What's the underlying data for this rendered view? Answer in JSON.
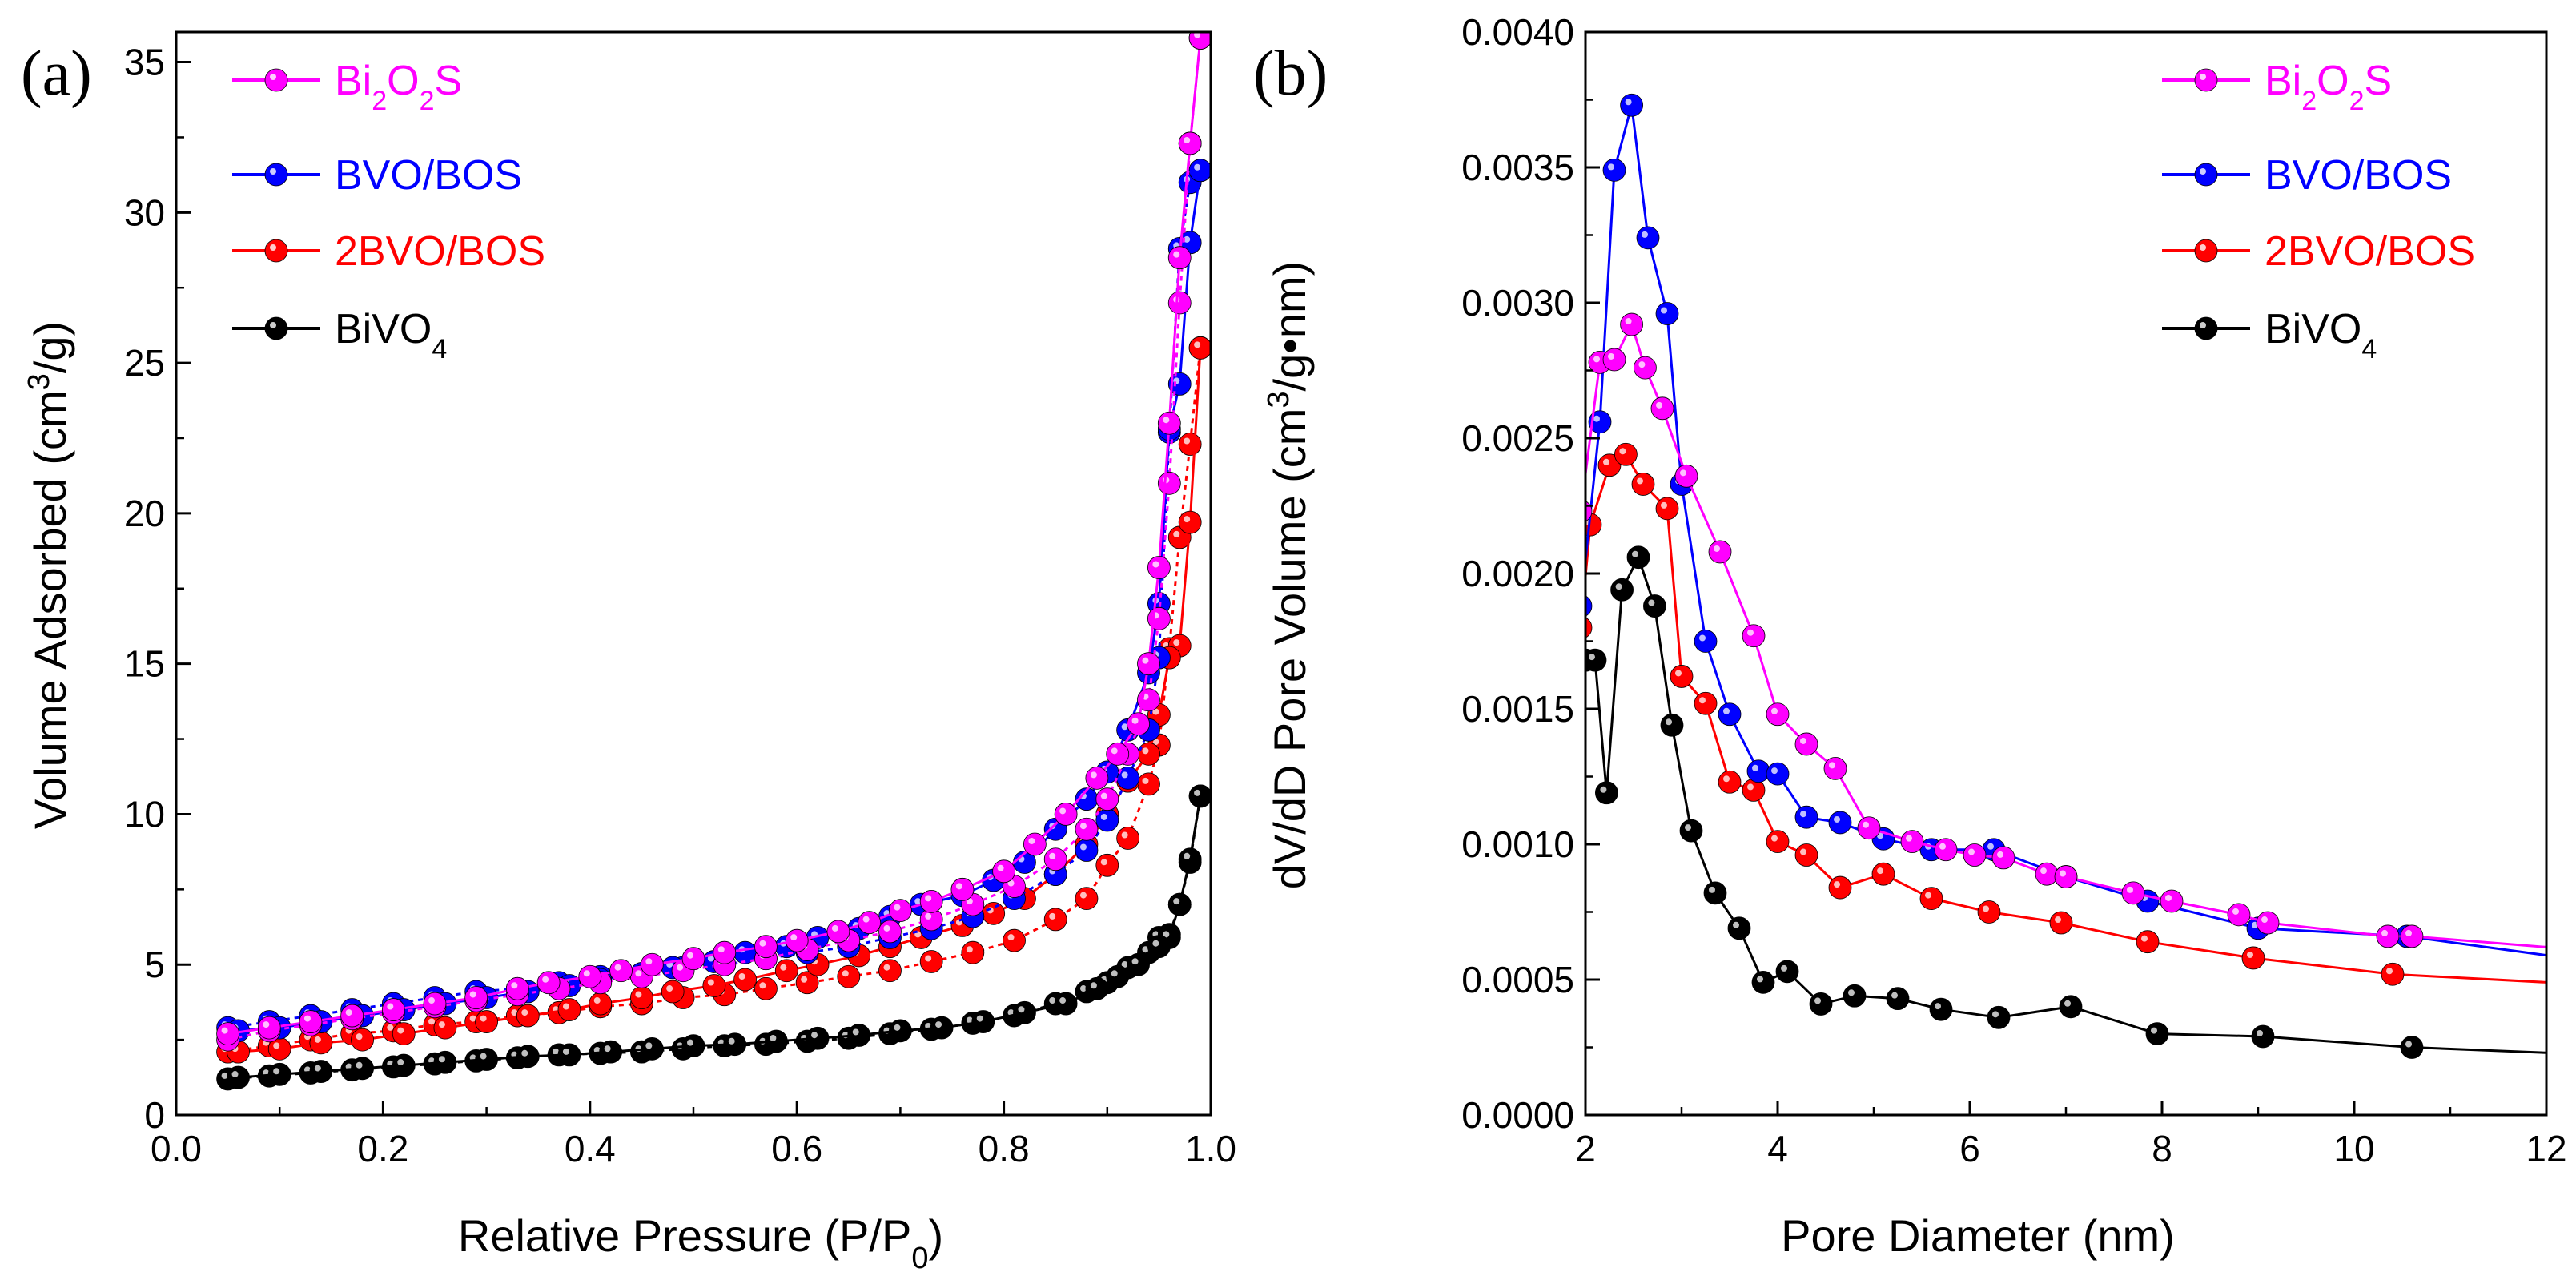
{
  "chart_data": [
    {
      "type": "scatter",
      "panel_label": "(a)",
      "title": "",
      "xlabel": "Relative Pressure (P/P",
      "xlabel_sub": "0",
      "xlabel_end": ")",
      "ylabel": "Volume Adsorbed (cm",
      "ylabel_sup": "3",
      "ylabel_end": "/g)",
      "xlim": [
        0.0,
        1.0
      ],
      "ylim": [
        0,
        36
      ],
      "xticks": [
        0.0,
        0.2,
        0.4,
        0.6,
        0.8,
        1.0
      ],
      "xtick_labels": [
        "0.0",
        "0.2",
        "0.4",
        "0.6",
        "0.8",
        "1.0"
      ],
      "yticks": [
        0,
        5,
        10,
        15,
        20,
        25,
        30,
        35
      ],
      "ytick_labels": [
        "0",
        "5",
        "10",
        "15",
        "20",
        "25",
        "30",
        "35"
      ],
      "grid": false,
      "legend_position": "top-left",
      "series": [
        {
          "name": "Bi2O2S",
          "color": "#ff00ff",
          "adsorption": {
            "x": [
              0.05,
              0.09,
              0.13,
              0.17,
              0.21,
              0.25,
              0.29,
              0.33,
              0.37,
              0.41,
              0.45,
              0.49,
              0.53,
              0.57,
              0.61,
              0.65,
              0.69,
              0.73,
              0.77,
              0.81,
              0.85,
              0.88,
              0.9,
              0.92,
              0.94,
              0.95,
              0.96,
              0.97,
              0.98,
              0.99
            ],
            "y": [
              2.5,
              2.8,
              3.0,
              3.2,
              3.4,
              3.6,
              3.8,
              4.0,
              4.2,
              4.4,
              4.6,
              4.8,
              5.0,
              5.2,
              5.5,
              5.8,
              6.1,
              6.5,
              7.0,
              7.6,
              8.5,
              9.5,
              10.5,
              12.0,
              13.8,
              16.5,
              21.0,
              27.0,
              32.3,
              35.8
            ]
          },
          "desorption": {
            "x": [
              0.99,
              0.98,
              0.97,
              0.96,
              0.95,
              0.94,
              0.93,
              0.91,
              0.89,
              0.86,
              0.83,
              0.8,
              0.76,
              0.73,
              0.7,
              0.67,
              0.64,
              0.6,
              0.57,
              0.53,
              0.5,
              0.46,
              0.43,
              0.4,
              0.36,
              0.33,
              0.29,
              0.25,
              0.21,
              0.17,
              0.13,
              0.09,
              0.05
            ],
            "y": [
              35.8,
              32.3,
              28.5,
              23.0,
              18.2,
              15.0,
              13.0,
              12.0,
              11.2,
              10.0,
              9.0,
              8.1,
              7.5,
              7.1,
              6.8,
              6.4,
              6.1,
              5.8,
              5.6,
              5.4,
              5.2,
              5.0,
              4.8,
              4.6,
              4.4,
              4.2,
              3.9,
              3.7,
              3.5,
              3.3,
              3.1,
              2.9,
              2.7
            ]
          }
        },
        {
          "name": "BVO/BOS",
          "color": "#0000ff",
          "adsorption": {
            "x": [
              0.05,
              0.09,
              0.13,
              0.17,
              0.21,
              0.25,
              0.29,
              0.33,
              0.37,
              0.41,
              0.45,
              0.49,
              0.53,
              0.57,
              0.61,
              0.65,
              0.69,
              0.73,
              0.77,
              0.81,
              0.85,
              0.88,
              0.9,
              0.92,
              0.94,
              0.95,
              0.96,
              0.97,
              0.98,
              0.99
            ],
            "y": [
              2.9,
              3.1,
              3.3,
              3.5,
              3.7,
              3.9,
              4.1,
              4.2,
              4.4,
              4.6,
              4.7,
              4.9,
              5.0,
              5.2,
              5.4,
              5.6,
              5.9,
              6.2,
              6.6,
              7.2,
              8.0,
              8.8,
              9.8,
              11.2,
              12.8,
              15.2,
              22.7,
              28.8,
              31.0,
              31.4
            ]
          },
          "desorption": {
            "x": [
              0.99,
              0.98,
              0.97,
              0.96,
              0.95,
              0.94,
              0.92,
              0.9,
              0.88,
              0.85,
              0.82,
              0.79,
              0.76,
              0.72,
              0.69,
              0.66,
              0.62,
              0.59,
              0.55,
              0.52,
              0.48,
              0.45,
              0.41,
              0.38,
              0.34,
              0.3,
              0.26,
              0.22,
              0.18,
              0.14,
              0.1,
              0.06
            ],
            "y": [
              31.4,
              29.0,
              24.3,
              22.8,
              17.0,
              14.7,
              12.8,
              11.4,
              10.5,
              9.5,
              8.4,
              7.8,
              7.3,
              7.0,
              6.6,
              6.2,
              5.9,
              5.6,
              5.4,
              5.1,
              4.9,
              4.7,
              4.5,
              4.3,
              4.1,
              3.9,
              3.7,
              3.5,
              3.3,
              3.1,
              2.9,
              2.8
            ]
          }
        },
        {
          "name": "2BVO/BOS",
          "color": "#ff0000",
          "adsorption": {
            "x": [
              0.05,
              0.09,
              0.13,
              0.17,
              0.21,
              0.25,
              0.29,
              0.33,
              0.37,
              0.41,
              0.45,
              0.49,
              0.53,
              0.57,
              0.61,
              0.65,
              0.69,
              0.73,
              0.77,
              0.81,
              0.85,
              0.88,
              0.9,
              0.92,
              0.94,
              0.95,
              0.96,
              0.97,
              0.98,
              0.99
            ],
            "y": [
              2.1,
              2.3,
              2.5,
              2.7,
              2.8,
              3.0,
              3.1,
              3.3,
              3.4,
              3.6,
              3.7,
              3.9,
              4.0,
              4.2,
              4.4,
              4.6,
              4.8,
              5.1,
              5.4,
              5.8,
              6.5,
              7.2,
              8.3,
              9.2,
              11.0,
              12.3,
              15.5,
              19.2,
              22.3,
              25.5
            ]
          },
          "desorption": {
            "x": [
              0.99,
              0.98,
              0.97,
              0.96,
              0.95,
              0.94,
              0.92,
              0.9,
              0.88,
              0.85,
              0.82,
              0.79,
              0.76,
              0.72,
              0.69,
              0.66,
              0.62,
              0.59,
              0.55,
              0.52,
              0.48,
              0.45,
              0.41,
              0.38,
              0.34,
              0.3,
              0.26,
              0.22,
              0.18,
              0.14,
              0.1,
              0.06
            ],
            "y": [
              25.5,
              19.7,
              15.6,
              15.2,
              13.3,
              12.0,
              11.1,
              10.0,
              9.0,
              8.0,
              7.2,
              6.7,
              6.3,
              5.9,
              5.6,
              5.3,
              5.0,
              4.8,
              4.5,
              4.3,
              4.1,
              3.9,
              3.7,
              3.5,
              3.3,
              3.1,
              2.9,
              2.7,
              2.5,
              2.4,
              2.2,
              2.1
            ]
          }
        },
        {
          "name": "BiVO4",
          "color": "#000000",
          "adsorption": {
            "x": [
              0.05,
              0.09,
              0.13,
              0.17,
              0.21,
              0.25,
              0.29,
              0.33,
              0.37,
              0.41,
              0.45,
              0.49,
              0.53,
              0.57,
              0.61,
              0.65,
              0.69,
              0.73,
              0.77,
              0.81,
              0.85,
              0.88,
              0.9,
              0.92,
              0.94,
              0.95,
              0.96,
              0.97,
              0.98,
              0.99
            ],
            "y": [
              1.2,
              1.3,
              1.4,
              1.5,
              1.6,
              1.7,
              1.8,
              1.9,
              2.0,
              2.05,
              2.1,
              2.2,
              2.3,
              2.35,
              2.45,
              2.55,
              2.7,
              2.85,
              3.05,
              3.3,
              3.7,
              4.1,
              4.4,
              4.9,
              5.4,
              5.9,
              6.0,
              7.0,
              8.4,
              10.6
            ]
          },
          "desorption": {
            "x": [
              0.99,
              0.98,
              0.97,
              0.96,
              0.95,
              0.93,
              0.91,
              0.89,
              0.86,
              0.82,
              0.78,
              0.74,
              0.7,
              0.66,
              0.62,
              0.58,
              0.54,
              0.5,
              0.46,
              0.42,
              0.38,
              0.34,
              0.3,
              0.26,
              0.22,
              0.18,
              0.14,
              0.1,
              0.06
            ],
            "y": [
              10.6,
              8.5,
              7.0,
              5.9,
              5.6,
              5.0,
              4.6,
              4.2,
              3.7,
              3.4,
              3.1,
              2.9,
              2.8,
              2.65,
              2.55,
              2.45,
              2.35,
              2.3,
              2.2,
              2.1,
              2.0,
              1.95,
              1.85,
              1.75,
              1.65,
              1.55,
              1.45,
              1.35,
              1.25
            ]
          }
        }
      ]
    },
    {
      "type": "line",
      "panel_label": "(b)",
      "title": "",
      "xlabel": "Pore Diameter (nm)",
      "ylabel": "dV/dD Pore Volume (cm",
      "ylabel_sup": "3",
      "ylabel_end": "/g•nm)",
      "xlim": [
        2,
        12
      ],
      "ylim": [
        0,
        0.004
      ],
      "xticks": [
        2,
        4,
        6,
        8,
        10,
        12
      ],
      "xtick_labels": [
        "2",
        "4",
        "6",
        "8",
        "10",
        "12"
      ],
      "yticks": [
        0,
        0.0005,
        0.001,
        0.0015,
        0.002,
        0.0025,
        0.003,
        0.0035,
        0.004
      ],
      "ytick_labels": [
        "0.0000",
        "0.0005",
        "0.0010",
        "0.0015",
        "0.0020",
        "0.0025",
        "0.0030",
        "0.0035",
        "0.0040"
      ],
      "grid": false,
      "legend_position": "top-right",
      "series": [
        {
          "name": "Bi2O2S",
          "color": "#ff00ff",
          "x": [
            1.95,
            2.15,
            2.3,
            2.48,
            2.62,
            2.8,
            3.05,
            3.4,
            3.75,
            4.0,
            4.3,
            4.6,
            4.95,
            5.4,
            5.75,
            6.05,
            6.35,
            6.8,
            7.0,
            7.7,
            8.1,
            8.8,
            9.1,
            10.35,
            10.6,
            12.0
          ],
          "y": [
            0.00223,
            0.00278,
            0.00279,
            0.00292,
            0.00276,
            0.00261,
            0.00236,
            0.00208,
            0.00177,
            0.00148,
            0.00137,
            0.00128,
            0.00106,
            0.00101,
            0.00098,
            0.00096,
            0.00095,
            0.00089,
            0.00088,
            0.00082,
            0.00079,
            0.00074,
            0.00071,
            0.00066,
            0.00066,
            0.00062
          ]
        },
        {
          "name": "BVO/BOS",
          "color": "#0000ff",
          "x": [
            1.95,
            2.15,
            2.3,
            2.48,
            2.65,
            2.85,
            3.0,
            3.25,
            3.5,
            3.8,
            4.0,
            4.3,
            4.65,
            5.1,
            5.6,
            6.25,
            7.0,
            7.85,
            9.0,
            10.55,
            12.0
          ],
          "y": [
            0.00188,
            0.00256,
            0.00349,
            0.00373,
            0.00324,
            0.00296,
            0.00233,
            0.00175,
            0.00148,
            0.00127,
            0.00126,
            0.0011,
            0.00108,
            0.00102,
            0.00098,
            0.00098,
            0.00088,
            0.00079,
            0.00069,
            0.00066,
            0.00059
          ]
        },
        {
          "name": "2BVO/BOS",
          "color": "#ff0000",
          "x": [
            1.95,
            2.05,
            2.25,
            2.42,
            2.6,
            2.85,
            3.0,
            3.25,
            3.5,
            3.75,
            4.0,
            4.3,
            4.65,
            5.1,
            5.6,
            6.2,
            6.95,
            7.85,
            8.95,
            10.4,
            12.0
          ],
          "y": [
            0.0018,
            0.00218,
            0.0024,
            0.00244,
            0.00233,
            0.00224,
            0.00162,
            0.00152,
            0.00123,
            0.0012,
            0.00101,
            0.00096,
            0.00084,
            0.00089,
            0.0008,
            0.00075,
            0.00071,
            0.00064,
            0.00058,
            0.00052,
            0.00049
          ]
        },
        {
          "name": "BiVO4",
          "color": "#000000",
          "x": [
            2.0,
            2.1,
            2.22,
            2.38,
            2.55,
            2.72,
            2.9,
            3.1,
            3.35,
            3.6,
            3.85,
            4.1,
            4.45,
            4.8,
            5.25,
            5.7,
            6.3,
            7.05,
            7.95,
            9.05,
            10.6,
            12.0
          ],
          "y": [
            0.00168,
            0.00168,
            0.00119,
            0.00194,
            0.00206,
            0.00188,
            0.00144,
            0.00105,
            0.00082,
            0.00069,
            0.00049,
            0.00053,
            0.00041,
            0.00044,
            0.00043,
            0.00039,
            0.00036,
            0.0004,
            0.0003,
            0.00029,
            0.00025,
            0.00023
          ]
        }
      ]
    }
  ],
  "legend_text": {
    "bi2o2s": {
      "a": "Bi",
      "s1": "2",
      "b": "O",
      "s2": "2",
      "c": "S"
    },
    "bvobos": "BVO/BOS",
    "twobvobos": "2BVO/BOS",
    "bivo4": {
      "a": "BiVO",
      "s1": "4"
    }
  }
}
